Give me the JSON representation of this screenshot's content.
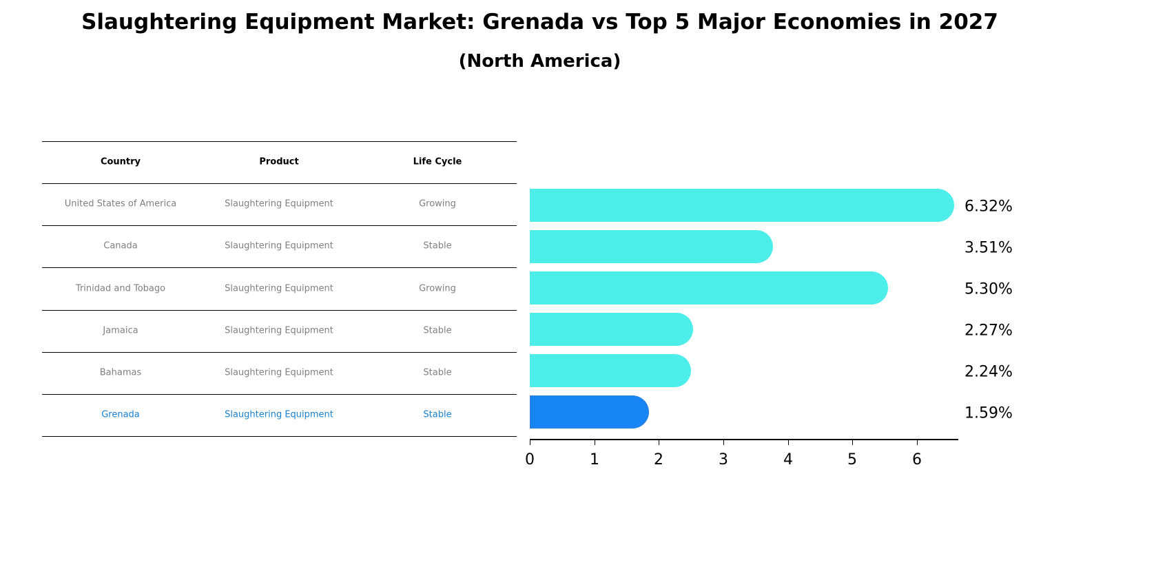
{
  "title": "Slaughtering Equipment Market: Grenada vs Top 5 Major Economies in 2027",
  "subtitle": "(North America)",
  "table": {
    "headers": [
      "Country",
      "Product",
      "Life Cycle"
    ],
    "rows": [
      [
        "United States of America",
        "Slaughtering Equipment",
        "Growing"
      ],
      [
        "Canada",
        "Slaughtering Equipment",
        "Stable"
      ],
      [
        "Trinidad and Tobago",
        "Slaughtering Equipment",
        "Growing"
      ],
      [
        "Jamaica",
        "Slaughtering Equipment",
        "Stable"
      ],
      [
        "Bahamas",
        "Slaughtering Equipment",
        "Stable"
      ],
      [
        "Grenada",
        "Slaughtering Equipment",
        "Stable"
      ]
    ],
    "highlight_row": 5,
    "highlight_color": "#1a80d0",
    "text_color": "#808080"
  },
  "colors": {
    "bar": "#4deeea",
    "highlight_bar": "#1785f5"
  },
  "value_labels": [
    "6.32%",
    "3.51%",
    "5.30%",
    "2.27%",
    "2.24%",
    "1.59%"
  ],
  "axis_ticks": [
    "0",
    "1",
    "2",
    "3",
    "4",
    "5",
    "6"
  ],
  "chart_data": {
    "type": "bar",
    "orientation": "horizontal",
    "title": "Slaughtering Equipment Market: Grenada vs Top 5 Major Economies in 2027",
    "subtitle": "(North America)",
    "categories": [
      "United States of America",
      "Canada",
      "Trinidad and Tobago",
      "Jamaica",
      "Bahamas",
      "Grenada"
    ],
    "values": [
      6.32,
      3.51,
      5.3,
      2.27,
      2.24,
      1.59
    ],
    "value_labels": [
      "6.32%",
      "3.51%",
      "5.30%",
      "2.27%",
      "2.24%",
      "1.59%"
    ],
    "highlight": "Grenada",
    "xlabel": "",
    "ylabel": "",
    "xticks": [
      0,
      1,
      2,
      3,
      4,
      5,
      6
    ],
    "xlim": [
      0,
      6.6
    ],
    "grid": false,
    "legend": null
  }
}
